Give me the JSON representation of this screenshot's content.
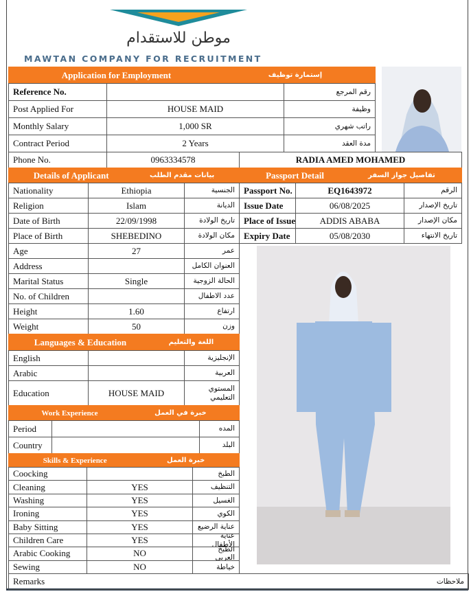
{
  "header": {
    "logo_arabic": "موطن للاستقدام",
    "company": "MAWTAN COMPANY FOR RECRUITMENT"
  },
  "application": {
    "title": "Application for Employment",
    "title_ar": "إستمارة توظيف",
    "rows": [
      {
        "label": "Reference No.",
        "label_ar": "رقم المرجع"
      },
      {
        "label": "Post Applied For",
        "value": "HOUSE MAID",
        "label_ar": "وظيفة"
      },
      {
        "label": "Monthly Salary",
        "value": "1,000 SR",
        "label_ar": "راتب شهري"
      },
      {
        "label": "Contract Period",
        "value": "2 Years",
        "label_ar": "مدة العقد"
      }
    ],
    "phone": {
      "label": "Phone No.",
      "value": "0963334578"
    },
    "name": "RADIA AMED MOHAMED"
  },
  "details": {
    "title": "Details of Applicant",
    "title_ar": "بيانات مقدم الطلب",
    "rows": [
      {
        "label": "Nationality",
        "value": "Ethiopia",
        "label_ar": "الجنسية"
      },
      {
        "label": "Religion",
        "value": "Islam",
        "label_ar": "الديانة"
      },
      {
        "label": "Date of Birth",
        "value": "22/09/1998",
        "label_ar": "تاريخ الولادة"
      },
      {
        "label": "Place of Birth",
        "value": "SHEBEDINO",
        "label_ar": "مكان الولادة"
      },
      {
        "label": "Age",
        "value": "27",
        "label_ar": "عمر"
      },
      {
        "label": "Address",
        "label_ar": "العنوان الكامل"
      },
      {
        "label": "Marital Status",
        "value": "Single",
        "label_ar": "الحالة الزوجية"
      },
      {
        "label": "No. of Children",
        "label_ar": "عدد الاطفال"
      },
      {
        "label": "Height",
        "value": "1.60",
        "label_ar": "ارتفاع"
      },
      {
        "label": "Weight",
        "value": "50",
        "label_ar": "وزن"
      }
    ]
  },
  "languages": {
    "title": "Languages & Education",
    "title_ar": "اللغة والتعليم",
    "rows": [
      {
        "label": "English",
        "label_ar": "الإنجليزية"
      },
      {
        "label": "Arabic",
        "label_ar": "العربية"
      },
      {
        "label": "Education",
        "value": "HOUSE MAID",
        "label_ar": "المستوي التعليمي"
      }
    ]
  },
  "work": {
    "title": "Work Experience",
    "title_ar": "خبرة في العمل",
    "rows": [
      {
        "label": "Period",
        "label_ar": "المده"
      },
      {
        "label": "Country",
        "label_ar": "البلد"
      }
    ]
  },
  "skills": {
    "title": "Skills & Experience",
    "title_ar": "خبرة العمل",
    "rows": [
      {
        "label": "Coocking",
        "label_ar": "الطبخ"
      },
      {
        "label": "Cleaning",
        "value": "YES",
        "label_ar": "التنظيف"
      },
      {
        "label": "Washing",
        "value": "YES",
        "label_ar": "الغسيل"
      },
      {
        "label": "Ironing",
        "value": "YES",
        "label_ar": "الكوي"
      },
      {
        "label": "Baby Sitting",
        "value": "YES",
        "label_ar": "عناية الرضيع"
      },
      {
        "label": "Children Care",
        "value": "YES",
        "label_ar": "عناية الأطفال"
      },
      {
        "label": "Arabic Cooking",
        "value": "NO",
        "label_ar": "الطبخ العربي"
      },
      {
        "label": "Sewing",
        "value": "NO",
        "label_ar": "خياطة"
      }
    ]
  },
  "remarks": {
    "label": "Remarks",
    "label_ar": "ملاحظات"
  },
  "passport": {
    "title": "Passport Detail",
    "title_ar": "تفاصيل جواز السفر",
    "rows": [
      {
        "label": "Passport No.",
        "value": "EQ1643972",
        "label_ar": "الرقم"
      },
      {
        "label": "Issue Date",
        "value": "06/08/2025",
        "label_ar": "تاريخ الإصدار"
      },
      {
        "label": "Place of Issue",
        "value": "ADDIS ABABA",
        "label_ar": "مكان الإصدار"
      },
      {
        "label": "Expiry Date",
        "value": "05/08/2030",
        "label_ar": "تاريخ الانتهاء"
      }
    ]
  }
}
